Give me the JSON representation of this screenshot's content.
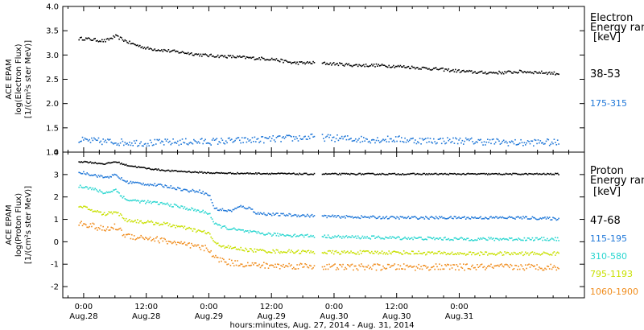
{
  "chart_data": [
    {
      "type": "scatter",
      "panel": "electron",
      "ylabel_lines": [
        "ACE EPAM",
        "log(Electron Flux)",
        "[1/(cm²s ster MeV)]"
      ],
      "ylim": [
        1.0,
        4.0
      ],
      "yticks": [
        "1.0",
        "1.5",
        "2.0",
        "2.5",
        "3.0",
        "3.5",
        "4.0"
      ],
      "legend_title": [
        "Electron",
        "Energy ran"
      ],
      "legend_unit": "[keV]",
      "series": [
        {
          "name": "38-53",
          "color": "#000000",
          "x": [
            0,
            4,
            6,
            9,
            12,
            16,
            20,
            22,
            24,
            28,
            32,
            36,
            40,
            44,
            48,
            52,
            56,
            60,
            64,
            68,
            72,
            76,
            80,
            84,
            88,
            91
          ],
          "y": [
            3.35,
            3.3,
            3.4,
            3.25,
            3.15,
            3.1,
            3.05,
            3.02,
            3.0,
            2.98,
            2.95,
            2.93,
            2.85,
            2.85,
            2.83,
            2.8,
            2.8,
            2.78,
            2.75,
            2.72,
            2.68,
            2.65,
            2.65,
            2.67,
            2.65,
            2.63
          ]
        },
        {
          "name": "175-315",
          "color": "#1f77d8",
          "x": [
            0,
            6,
            12,
            18,
            24,
            30,
            36,
            40,
            44,
            48,
            52,
            56,
            60,
            64,
            68,
            72,
            76,
            80,
            84,
            88,
            91
          ],
          "y": [
            1.25,
            1.22,
            1.2,
            1.22,
            1.23,
            1.25,
            1.28,
            1.3,
            1.32,
            1.3,
            1.28,
            1.27,
            1.28,
            1.25,
            1.25,
            1.25,
            1.23,
            1.22,
            1.2,
            1.22,
            1.2
          ]
        }
      ]
    },
    {
      "type": "scatter",
      "panel": "proton",
      "ylabel_lines": [
        "ACE EPAM",
        "log(Proton Flux)",
        "[1/(cm²s ster MeV)]"
      ],
      "ylim": [
        -2.5,
        4.0
      ],
      "yticks": [
        "-2",
        "-1",
        "0",
        "1",
        "2",
        "3",
        "4"
      ],
      "legend_title": [
        "Proton",
        "Energy ran"
      ],
      "legend_unit": "[keV]",
      "series": [
        {
          "name": "47-68",
          "color": "#000000",
          "x": [
            0,
            4,
            6,
            8,
            12,
            16,
            20,
            24,
            30,
            36,
            42,
            48,
            60,
            72,
            84,
            91
          ],
          "y": [
            3.6,
            3.5,
            3.6,
            3.45,
            3.3,
            3.2,
            3.15,
            3.1,
            3.08,
            3.07,
            3.05,
            3.05,
            3.05,
            3.05,
            3.05,
            3.05
          ]
        },
        {
          "name": "115-195",
          "color": "#1f77d8",
          "x": [
            0,
            4,
            6,
            8,
            12,
            16,
            20,
            22,
            24,
            25,
            28,
            30,
            32,
            33,
            36,
            42,
            48,
            60,
            72,
            84,
            91
          ],
          "y": [
            3.1,
            2.9,
            3.0,
            2.7,
            2.6,
            2.5,
            2.3,
            2.3,
            2.1,
            1.5,
            1.4,
            1.6,
            1.5,
            1.3,
            1.25,
            1.2,
            1.15,
            1.1,
            1.1,
            1.1,
            1.05
          ]
        },
        {
          "name": "310-580",
          "color": "#2ad6d0",
          "x": [
            0,
            4,
            6,
            8,
            12,
            16,
            20,
            24,
            25,
            28,
            32,
            36,
            42,
            48,
            60,
            72,
            84,
            91
          ],
          "y": [
            2.5,
            2.2,
            2.35,
            1.9,
            1.8,
            1.7,
            1.5,
            1.3,
            0.8,
            0.6,
            0.45,
            0.35,
            0.3,
            0.25,
            0.2,
            0.15,
            0.15,
            0.15
          ]
        },
        {
          "name": "795-1193",
          "color": "#c8e000",
          "x": [
            0,
            4,
            6,
            8,
            12,
            16,
            20,
            24,
            25,
            28,
            32,
            36,
            42,
            48,
            60,
            72,
            84,
            91
          ],
          "y": [
            1.55,
            1.25,
            1.4,
            1.0,
            0.9,
            0.8,
            0.6,
            0.4,
            -0.05,
            -0.25,
            -0.35,
            -0.4,
            -0.42,
            -0.45,
            -0.45,
            -0.5,
            -0.5,
            -0.5
          ]
        },
        {
          "name": "1060-1900",
          "color": "#f08c1c",
          "x": [
            0,
            4,
            6,
            8,
            12,
            16,
            20,
            24,
            25,
            28,
            32,
            36,
            42,
            48,
            60,
            72,
            84,
            91
          ],
          "y": [
            0.85,
            0.55,
            0.7,
            0.3,
            0.2,
            0.05,
            -0.15,
            -0.3,
            -0.7,
            -0.9,
            -1.0,
            -1.05,
            -1.05,
            -1.1,
            -1.1,
            -1.1,
            -1.1,
            -1.1
          ]
        }
      ]
    }
  ],
  "x_axis": {
    "range_hours": [
      -4,
      96
    ],
    "ticks": [
      {
        "h": 0,
        "time": "0:00",
        "date": "Aug.28"
      },
      {
        "h": 12,
        "time": "12:00",
        "date": "Aug.28"
      },
      {
        "h": 24,
        "time": "0:00",
        "date": "Aug.29"
      },
      {
        "h": 36,
        "time": "12:00",
        "date": "Aug.29"
      },
      {
        "h": 48,
        "time": "0:00",
        "date": "Aug.30"
      },
      {
        "h": 60,
        "time": "12:00",
        "date": "Aug.30"
      },
      {
        "h": 72,
        "time": "0:00",
        "date": "Aug.31"
      }
    ],
    "label": "hours:minutes, Aug. 27, 2014 - Aug. 31, 2014"
  }
}
